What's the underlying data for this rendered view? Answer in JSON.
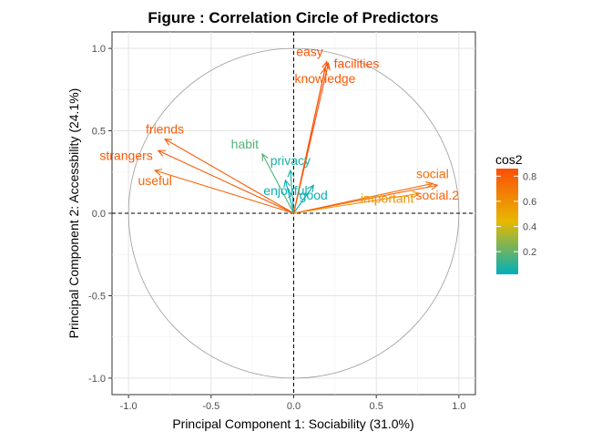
{
  "chart_data": {
    "type": "correlation-circle",
    "title": "Figure : Correlation Circle of Predictors",
    "xlabel": "Principal Component 1: Sociability (31.0%)",
    "ylabel": "Principal Component 2: Accessbility (24.1%)",
    "xlim": [
      -1.1,
      1.1
    ],
    "ylim": [
      -1.1,
      1.1
    ],
    "x_ticks": [
      -1.0,
      -0.5,
      0.0,
      0.5,
      1.0
    ],
    "x_tick_labels": [
      "-1.0",
      "-0.5",
      "0.0",
      "0.5",
      "1.0"
    ],
    "y_ticks": [
      -1.0,
      -0.5,
      0.0,
      0.5,
      1.0
    ],
    "y_tick_labels": [
      "-1.0",
      "-0.5",
      "0.0",
      "0.5",
      "1.0"
    ],
    "grid": true,
    "unit_circle": true,
    "reference_lines": [
      "x=0",
      "y=0"
    ],
    "legend": {
      "title": "cos2",
      "position": "right",
      "ticks": [
        0.2,
        0.4,
        0.6,
        0.8
      ],
      "tick_labels": [
        "0.2",
        "0.4",
        "0.6",
        "0.8"
      ],
      "range": [
        0.02,
        0.86
      ],
      "colors": [
        "#00AFBB",
        "#E7B800",
        "#FC4E07"
      ]
    },
    "variables": [
      {
        "name": "easy",
        "x": 0.2,
        "y": 0.92,
        "cos2": 0.85,
        "label_pos": "above-left"
      },
      {
        "name": "facilities",
        "x": 0.21,
        "y": 0.91,
        "cos2": 0.86,
        "label_pos": "right"
      },
      {
        "name": "knowledge",
        "x": 0.19,
        "y": 0.88,
        "cos2": 0.82,
        "label_pos": "below"
      },
      {
        "name": "friends",
        "x": -0.78,
        "y": 0.45,
        "cos2": 0.81,
        "label_pos": "above"
      },
      {
        "name": "strangers",
        "x": -0.82,
        "y": 0.38,
        "cos2": 0.82,
        "label_pos": "below-left"
      },
      {
        "name": "useful",
        "x": -0.84,
        "y": 0.26,
        "cos2": 0.77,
        "label_pos": "below"
      },
      {
        "name": "habit",
        "x": -0.19,
        "y": 0.36,
        "cos2": 0.17,
        "label_pos": "above-left"
      },
      {
        "name": "privacy",
        "x": -0.02,
        "y": 0.26,
        "cos2": 0.07,
        "label_pos": "above"
      },
      {
        "name": "enjoyful",
        "x": -0.05,
        "y": 0.2,
        "cos2": 0.04,
        "label_pos": "below"
      },
      {
        "name": "good",
        "x": 0.12,
        "y": 0.17,
        "cos2": 0.04,
        "label_pos": "below"
      },
      {
        "name": "social",
        "x": 0.84,
        "y": 0.18,
        "cos2": 0.74,
        "label_pos": "above"
      },
      {
        "name": "social.2",
        "x": 0.87,
        "y": 0.17,
        "cos2": 0.79,
        "label_pos": "below"
      },
      {
        "name": "important",
        "x": 0.76,
        "y": 0.12,
        "cos2": 0.59,
        "label_pos": "below-left"
      }
    ]
  }
}
